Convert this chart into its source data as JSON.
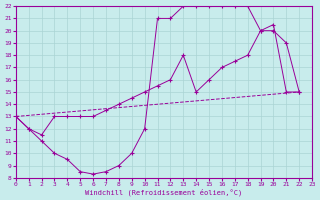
{
  "xlabel": "Windchill (Refroidissement éolien,°C)",
  "bg_color": "#c8ecec",
  "grid_color": "#aad4d4",
  "line_color": "#990099",
  "xlim": [
    0,
    23
  ],
  "ylim": [
    8,
    22
  ],
  "xticks": [
    0,
    1,
    2,
    3,
    4,
    5,
    6,
    7,
    8,
    9,
    10,
    11,
    12,
    13,
    14,
    15,
    16,
    17,
    18,
    19,
    20,
    21,
    22,
    23
  ],
  "yticks": [
    8,
    9,
    10,
    11,
    12,
    13,
    14,
    15,
    16,
    17,
    18,
    19,
    20,
    21,
    22
  ],
  "line1_x": [
    0,
    1,
    2,
    3,
    4,
    5,
    6,
    7,
    8,
    9,
    10,
    11,
    12,
    13,
    14,
    15,
    16,
    17,
    18,
    19,
    20,
    21,
    22
  ],
  "line1_y": [
    13,
    12,
    11,
    10,
    9.5,
    8.5,
    8.3,
    8.5,
    9,
    10,
    12,
    21,
    21,
    22,
    22,
    22,
    22,
    22,
    22,
    20,
    20,
    19,
    15
  ],
  "line2_x": [
    0,
    1,
    2,
    3,
    4,
    5,
    6,
    7,
    8,
    9,
    10,
    11,
    12,
    13,
    14,
    15,
    16,
    17,
    18,
    19,
    20,
    21,
    22
  ],
  "line2_y": [
    13,
    12,
    11.5,
    13,
    13,
    13,
    13,
    13.5,
    14,
    14.5,
    15,
    15.5,
    16,
    18,
    15,
    16,
    17,
    17.5,
    18,
    20,
    20.5,
    15,
    15
  ],
  "line3_x": [
    0,
    22
  ],
  "line3_y": [
    13,
    15
  ]
}
